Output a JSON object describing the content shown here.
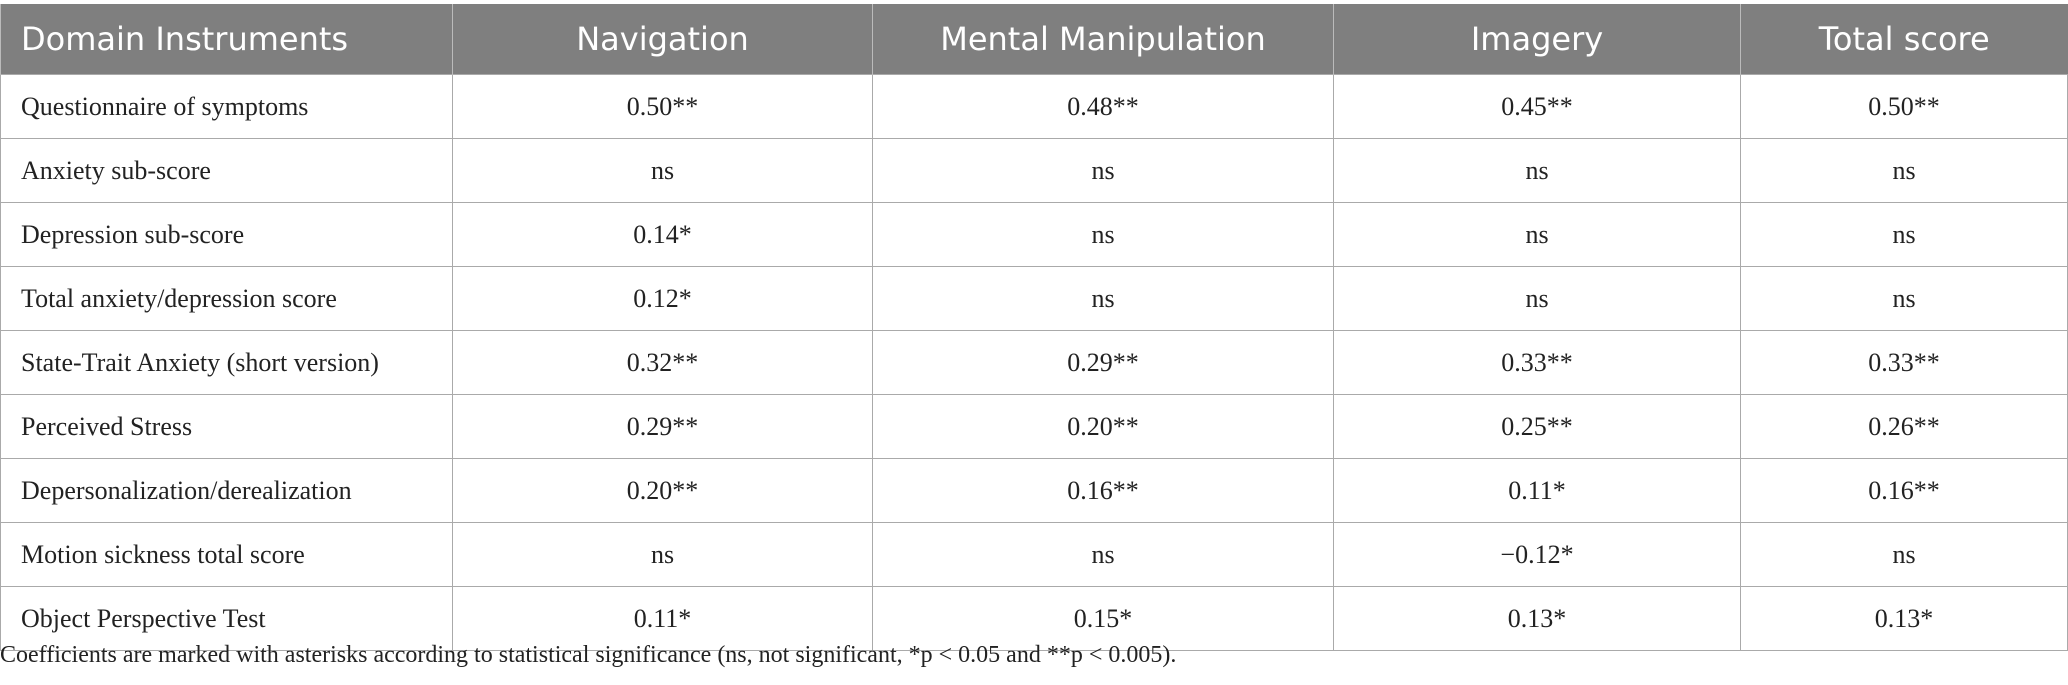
{
  "table": {
    "header": [
      "Domain Instruments",
      "Navigation",
      "Mental Manipulation",
      "Imagery",
      "Total score"
    ],
    "rows": [
      [
        "Questionnaire of symptoms",
        "0.50**",
        "0.48**",
        "0.45**",
        "0.50**"
      ],
      [
        "Anxiety sub-score",
        "ns",
        "ns",
        "ns",
        "ns"
      ],
      [
        "Depression sub-score",
        "0.14*",
        "ns",
        "ns",
        "ns"
      ],
      [
        "Total anxiety/depression score",
        "0.12*",
        "ns",
        "ns",
        "ns"
      ],
      [
        "State-Trait Anxiety (short version)",
        "0.32**",
        "0.29**",
        "0.33**",
        "0.33**"
      ],
      [
        "Perceived Stress",
        "0.29**",
        "0.20**",
        "0.25**",
        "0.26**"
      ],
      [
        "Depersonalization/derealization",
        "0.20**",
        "0.16**",
        "0.11*",
        "0.16**"
      ],
      [
        "Motion sickness total score",
        "ns",
        "ns",
        "−0.12*",
        "ns"
      ],
      [
        "Object Perspective Test",
        "0.11*",
        "0.15*",
        "0.13*",
        "0.13*"
      ]
    ]
  },
  "footnote": "Coefficients are marked with asterisks according to statistical significance (ns, not significant, *p < 0.05 and **p < 0.005)."
}
